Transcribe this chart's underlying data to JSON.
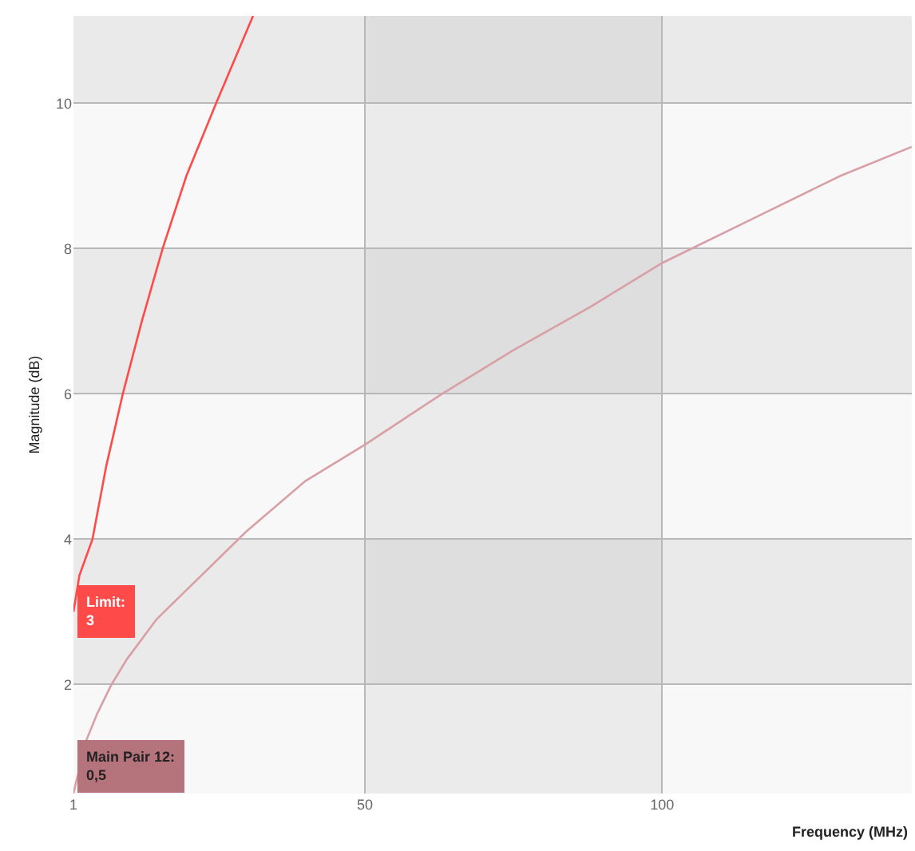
{
  "chart_data": {
    "type": "line",
    "xlabel": "Frequency (MHz)",
    "ylabel": "Magnitude (dB)",
    "xlim": [
      1,
      142
    ],
    "xticks": [
      1,
      50,
      100
    ],
    "ylim": [
      0.5,
      11.2
    ],
    "yticks": [
      2,
      4,
      6,
      8,
      10
    ],
    "grid": true,
    "marker": "none",
    "line_style": "solid",
    "series": [
      {
        "color": "#ff4a4a",
        "x": [
          1,
          2,
          4.2,
          6.5,
          9.3,
          12.5,
          16,
          20,
          25,
          31.2
        ],
        "values": [
          3,
          3.5,
          4,
          5,
          6,
          7,
          8,
          9,
          10,
          11.2
        ]
      },
      {
        "color": "#d8a0a6",
        "x": [
          1,
          3,
          5,
          7.4,
          10,
          15,
          20,
          30,
          40,
          50,
          63,
          75,
          88,
          100,
          115,
          130,
          142
        ],
        "values": [
          0.5,
          1.2,
          1.6,
          2,
          2.35,
          2.9,
          3.3,
          4.1,
          4.8,
          5.3,
          6,
          6.6,
          7.2,
          7.8,
          8.4,
          9,
          9.4
        ]
      }
    ],
    "annotations": [
      {
        "text": "Limit:\n3",
        "x": 1,
        "y": 3
      },
      {
        "text": "Main Pair 12:\n0,5",
        "x": 1,
        "y": 0.5
      }
    ]
  }
}
